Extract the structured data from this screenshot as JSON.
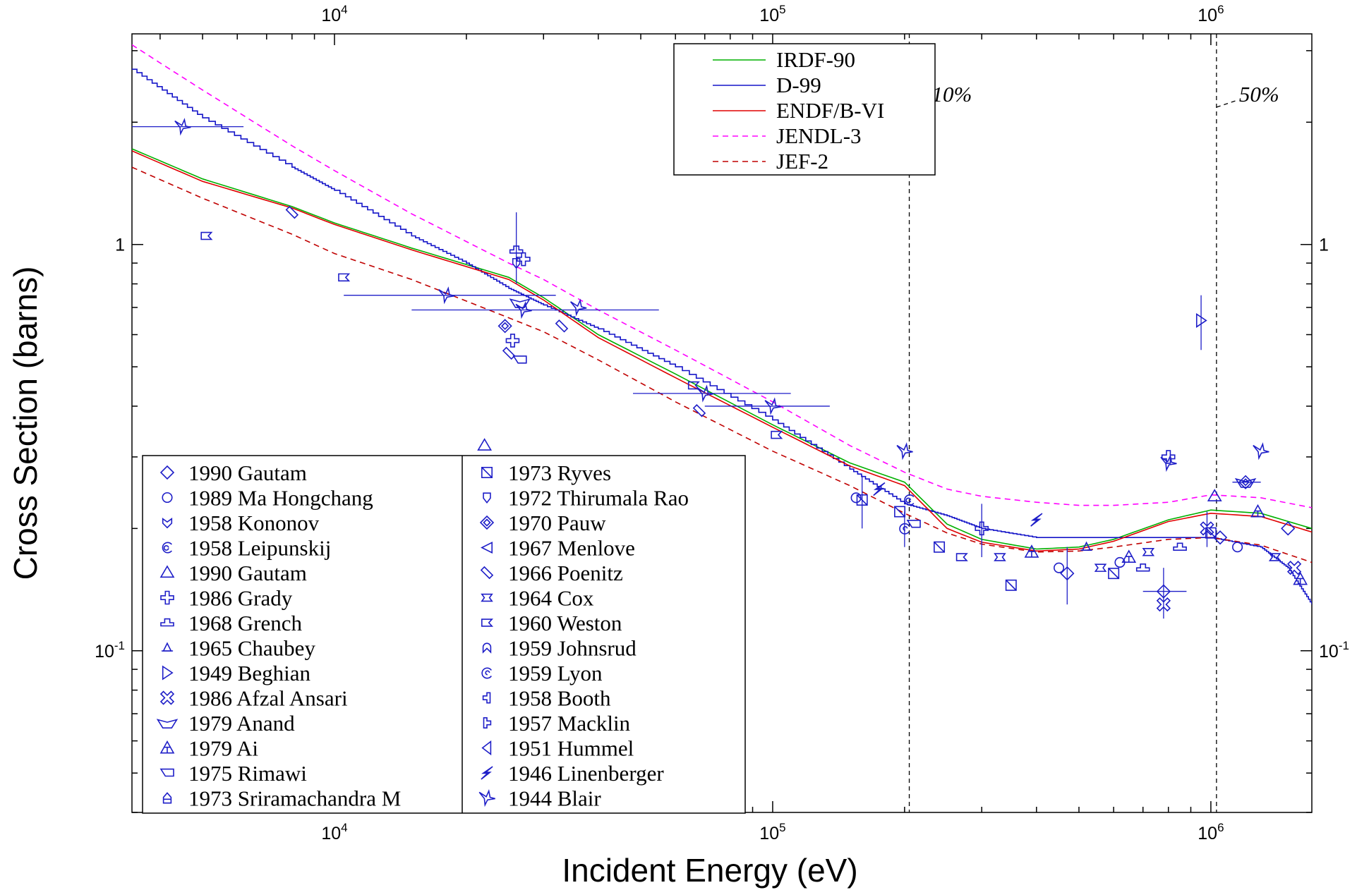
{
  "chart_data": {
    "type": "line",
    "title": "",
    "xlabel": "Incident Energy  (eV)",
    "ylabel": "Cross Section  (barns)",
    "xscale": "log",
    "yscale": "log",
    "xlim": [
      3450,
      1700000
    ],
    "ylim": [
      0.04,
      3.3
    ],
    "grid": false,
    "x_ticks": [
      {
        "base": "10",
        "exp": "4",
        "value": 10000
      },
      {
        "base": "10",
        "exp": "5",
        "value": 100000
      },
      {
        "base": "10",
        "exp": "6",
        "value": 1000000
      }
    ],
    "y_ticks": [
      {
        "base": "1",
        "exp": "",
        "value": 1
      },
      {
        "base": "10",
        "exp": "-1",
        "value": 0.1
      }
    ],
    "vlines": [
      {
        "x": 205000,
        "label": "10%"
      },
      {
        "x": 1030000,
        "label": "50%"
      }
    ],
    "series": [
      {
        "name": "IRDF-90",
        "color": "#00b000",
        "dash": "",
        "x": [
          3450,
          5000,
          8000,
          10000,
          15000,
          25000,
          30000,
          40000,
          60000,
          100000,
          150000,
          200000,
          250000,
          300000,
          400000,
          500000,
          600000,
          800000,
          1000000,
          1300000,
          1700000
        ],
        "y": [
          1.72,
          1.45,
          1.24,
          1.13,
          0.98,
          0.83,
          0.74,
          0.6,
          0.48,
          0.36,
          0.29,
          0.26,
          0.205,
          0.188,
          0.178,
          0.18,
          0.188,
          0.21,
          0.222,
          0.218,
          0.2
        ]
      },
      {
        "name": "D-99",
        "color": "#1414c8",
        "dash": "",
        "x": [
          3450,
          5000,
          8000,
          10000,
          15000,
          20000,
          25000,
          30000,
          40000,
          60000,
          100000,
          150000,
          200000,
          250000,
          300000,
          400000,
          500000,
          600000,
          800000,
          1000000,
          1300000,
          1500000,
          1700000
        ],
        "y": [
          2.7,
          2.05,
          1.55,
          1.36,
          1.05,
          0.9,
          0.78,
          0.71,
          0.62,
          0.5,
          0.37,
          0.28,
          0.23,
          0.215,
          0.2,
          0.19,
          0.19,
          0.19,
          0.19,
          0.19,
          0.18,
          0.16,
          0.13
        ]
      },
      {
        "name": "ENDF/B-VI",
        "color": "#e00000",
        "dash": "",
        "x": [
          3450,
          5000,
          8000,
          10000,
          15000,
          25000,
          30000,
          40000,
          60000,
          100000,
          150000,
          200000,
          250000,
          300000,
          400000,
          500000,
          600000,
          800000,
          1000000,
          1300000,
          1700000
        ],
        "y": [
          1.7,
          1.43,
          1.23,
          1.12,
          0.97,
          0.82,
          0.73,
          0.59,
          0.47,
          0.355,
          0.285,
          0.255,
          0.2,
          0.185,
          0.176,
          0.178,
          0.186,
          0.208,
          0.218,
          0.214,
          0.196
        ]
      },
      {
        "name": "JENDL-3",
        "color": "#ff00ff",
        "dash": "8,6",
        "x": [
          3450,
          5000,
          8000,
          10000,
          15000,
          25000,
          30000,
          40000,
          60000,
          100000,
          150000,
          200000,
          250000,
          300000,
          400000,
          500000,
          600000,
          800000,
          1000000,
          1300000,
          1700000
        ],
        "y": [
          3.1,
          2.4,
          1.75,
          1.52,
          1.19,
          0.9,
          0.82,
          0.69,
          0.55,
          0.41,
          0.32,
          0.275,
          0.25,
          0.24,
          0.232,
          0.228,
          0.228,
          0.232,
          0.242,
          0.238,
          0.225
        ]
      },
      {
        "name": "JEF-2",
        "color": "#c00000",
        "dash": "8,6",
        "x": [
          3450,
          5000,
          8000,
          10000,
          15000,
          25000,
          30000,
          40000,
          60000,
          100000,
          150000,
          200000,
          250000,
          300000,
          400000,
          500000,
          600000,
          800000,
          1000000,
          1300000,
          1700000
        ],
        "y": [
          1.55,
          1.3,
          1.06,
          0.95,
          0.82,
          0.66,
          0.61,
          0.52,
          0.41,
          0.31,
          0.255,
          0.218,
          0.195,
          0.183,
          0.175,
          0.176,
          0.18,
          0.188,
          0.19,
          0.182,
          0.165
        ]
      }
    ],
    "experiments_left": [
      {
        "label": "1990 Gautam",
        "symbol": "diamond"
      },
      {
        "label": "1989 Ma Hongchang",
        "symbol": "circle"
      },
      {
        "label": "1958 Kononov",
        "symbol": "heart"
      },
      {
        "label": "1958 Leipunskij",
        "symbol": "spiral"
      },
      {
        "label": "1990 Gautam",
        "symbol": "triangle"
      },
      {
        "label": "1986 Grady",
        "symbol": "cross"
      },
      {
        "label": "1968 Grench",
        "symbol": "hat"
      },
      {
        "label": "1965 Chaubey",
        "symbol": "small-triangle"
      },
      {
        "label": "1949 Beghian",
        "symbol": "triangle-right"
      },
      {
        "label": "1986 Afzal Ansari",
        "symbol": "x-cross"
      },
      {
        "label": "1979 Anand",
        "symbol": "pentagon-wide"
      },
      {
        "label": "1979 Ai",
        "symbol": "triple-triangle"
      },
      {
        "label": "1975 Rimawi",
        "symbol": "flag-left"
      },
      {
        "label": "1973 Sriramachandra M",
        "symbol": "house"
      }
    ],
    "experiments_right": [
      {
        "label": "1973 Ryves",
        "symbol": "square-slash"
      },
      {
        "label": "1972 Thirumala Rao",
        "symbol": "shield"
      },
      {
        "label": "1970 Pauw",
        "symbol": "diamond-inner"
      },
      {
        "label": "1967 Menlove",
        "symbol": "triangle-left-open"
      },
      {
        "label": "1966 Poenitz",
        "symbol": "diamond-thin"
      },
      {
        "label": "1964 Cox",
        "symbol": "bowtie-rect"
      },
      {
        "label": "1960 Weston",
        "symbol": "notch-rect"
      },
      {
        "label": "1959 Johnsrud",
        "symbol": "arch"
      },
      {
        "label": "1959 Lyon",
        "symbol": "hook"
      },
      {
        "label": "1958 Booth",
        "symbol": "step"
      },
      {
        "label": "1957 Macklin",
        "symbol": "step-right"
      },
      {
        "label": "1951 Hummel",
        "symbol": "triangle-left"
      },
      {
        "label": "1946 Linenberger",
        "symbol": "bolt"
      },
      {
        "label": "1944 Blair",
        "symbol": "bolt-star"
      }
    ],
    "points": [
      {
        "x": 4500,
        "y": 1.95,
        "s": "bolt-star",
        "xerr": [
          3450,
          6200
        ]
      },
      {
        "x": 8000,
        "y": 1.2,
        "s": "diamond-thin"
      },
      {
        "x": 5100,
        "y": 1.05,
        "s": "notch-rect"
      },
      {
        "x": 10500,
        "y": 0.83,
        "s": "notch-rect"
      },
      {
        "x": 18000,
        "y": 0.75,
        "s": "bolt-star",
        "xerr": [
          10500,
          32000
        ]
      },
      {
        "x": 26000,
        "y": 0.97,
        "s": "hat",
        "yerr": [
          0.8,
          1.2
        ]
      },
      {
        "x": 26000,
        "y": 0.9,
        "s": "shield"
      },
      {
        "x": 27000,
        "y": 0.92,
        "s": "cross"
      },
      {
        "x": 26500,
        "y": 0.72,
        "s": "pentagon-wide"
      },
      {
        "x": 27000,
        "y": 0.69,
        "s": "bolt-star",
        "xerr": [
          15000,
          55000
        ]
      },
      {
        "x": 24500,
        "y": 0.63,
        "s": "diamond-inner"
      },
      {
        "x": 25500,
        "y": 0.58,
        "s": "cross"
      },
      {
        "x": 25000,
        "y": 0.54,
        "s": "diamond-thin"
      },
      {
        "x": 26500,
        "y": 0.52,
        "s": "flag-left"
      },
      {
        "x": 33000,
        "y": 0.63,
        "s": "diamond-thin"
      },
      {
        "x": 36000,
        "y": 0.7,
        "s": "bolt-star"
      },
      {
        "x": 66000,
        "y": 0.45,
        "s": "notch-rect"
      },
      {
        "x": 70000,
        "y": 0.43,
        "s": "bolt-star",
        "xerr": [
          48000,
          110000
        ]
      },
      {
        "x": 68000,
        "y": 0.39,
        "s": "diamond-thin"
      },
      {
        "x": 100000,
        "y": 0.4,
        "s": "bolt-star",
        "xerr": [
          70000,
          135000
        ]
      },
      {
        "x": 102000,
        "y": 0.34,
        "s": "notch-rect"
      },
      {
        "x": 200000,
        "y": 0.31,
        "s": "bolt-star"
      },
      {
        "x": 160000,
        "y": 0.235,
        "s": "square-slash",
        "yerr": [
          0.2,
          0.27
        ]
      },
      {
        "x": 155000,
        "y": 0.238,
        "s": "circle"
      },
      {
        "x": 175000,
        "y": 0.25,
        "s": "bolt"
      },
      {
        "x": 205000,
        "y": 0.235,
        "s": "spiral"
      },
      {
        "x": 195000,
        "y": 0.22,
        "s": "square-slash"
      },
      {
        "x": 200000,
        "y": 0.2,
        "s": "hook",
        "yerr": [
          0.18,
          0.22
        ]
      },
      {
        "x": 210000,
        "y": 0.205,
        "s": "flag-left"
      },
      {
        "x": 240000,
        "y": 0.18,
        "s": "square-slash"
      },
      {
        "x": 270000,
        "y": 0.17,
        "s": "notch-rect"
      },
      {
        "x": 300000,
        "y": 0.2,
        "s": "cross",
        "yerr": [
          0.17,
          0.23
        ]
      },
      {
        "x": 330000,
        "y": 0.17,
        "s": "bowtie-rect"
      },
      {
        "x": 350000,
        "y": 0.145,
        "s": "square-slash"
      },
      {
        "x": 400000,
        "y": 0.21,
        "s": "bolt"
      },
      {
        "x": 390000,
        "y": 0.175,
        "s": "triple-triangle"
      },
      {
        "x": 450000,
        "y": 0.16,
        "s": "circle"
      },
      {
        "x": 470000,
        "y": 0.155,
        "s": "diamond",
        "yerr": [
          0.13,
          0.18
        ]
      },
      {
        "x": 520000,
        "y": 0.18,
        "s": "small-triangle"
      },
      {
        "x": 560000,
        "y": 0.16,
        "s": "bowtie-rect"
      },
      {
        "x": 600000,
        "y": 0.155,
        "s": "square-slash"
      },
      {
        "x": 620000,
        "y": 0.165,
        "s": "circle"
      },
      {
        "x": 650000,
        "y": 0.17,
        "s": "triple-triangle"
      },
      {
        "x": 700000,
        "y": 0.16,
        "s": "hat"
      },
      {
        "x": 720000,
        "y": 0.175,
        "s": "bowtie-rect"
      },
      {
        "x": 780000,
        "y": 0.14,
        "s": "diamond",
        "yerr": [
          0.12,
          0.16
        ],
        "xerr": [
          700000,
          880000
        ]
      },
      {
        "x": 780000,
        "y": 0.13,
        "s": "x-cross"
      },
      {
        "x": 800000,
        "y": 0.29,
        "s": "bolt-star"
      },
      {
        "x": 800000,
        "y": 0.3,
        "s": "cross"
      },
      {
        "x": 850000,
        "y": 0.18,
        "s": "hat"
      },
      {
        "x": 950000,
        "y": 0.65,
        "s": "triangle-right",
        "yerr": [
          0.55,
          0.75
        ]
      },
      {
        "x": 980000,
        "y": 0.2,
        "s": "x-cross",
        "yerr": [
          0.18,
          0.22
        ]
      },
      {
        "x": 1000000,
        "y": 0.195,
        "s": "square-slash"
      },
      {
        "x": 1020000,
        "y": 0.24,
        "s": "triangle"
      },
      {
        "x": 1050000,
        "y": 0.19,
        "s": "diamond"
      },
      {
        "x": 1150000,
        "y": 0.18,
        "s": "circle"
      },
      {
        "x": 1200000,
        "y": 0.26,
        "s": "pentagon-wide",
        "xerr": [
          1120000,
          1300000
        ]
      },
      {
        "x": 1200000,
        "y": 0.26,
        "s": "diamond-inner"
      },
      {
        "x": 1300000,
        "y": 0.31,
        "s": "bolt-star"
      },
      {
        "x": 1280000,
        "y": 0.22,
        "s": "triple-triangle"
      },
      {
        "x": 1400000,
        "y": 0.17,
        "s": "bowtie-rect"
      },
      {
        "x": 1500000,
        "y": 0.2,
        "s": "diamond"
      },
      {
        "x": 1550000,
        "y": 0.16,
        "s": "x-cross"
      },
      {
        "x": 1600000,
        "y": 0.15,
        "s": "triple-triangle"
      },
      {
        "x": 22000,
        "y": 0.32,
        "s": "triangle"
      }
    ]
  }
}
